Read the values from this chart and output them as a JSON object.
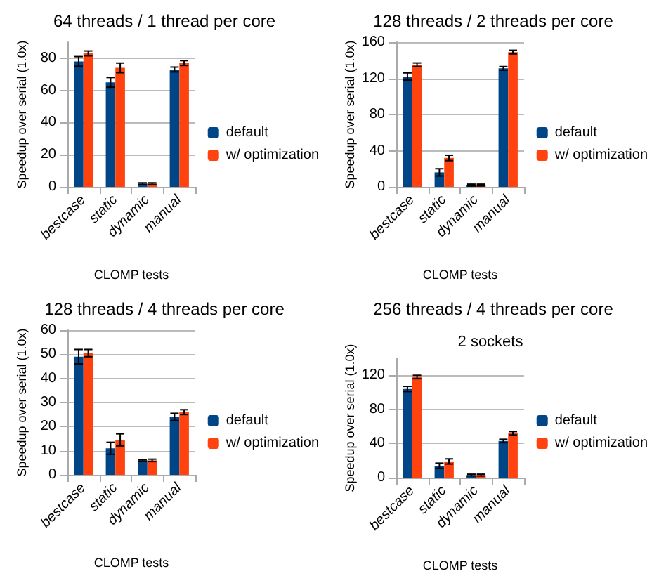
{
  "chart_data": [
    {
      "type": "bar",
      "title": "64 threads / 1 thread per core",
      "xlabel": "CLOMP tests",
      "ylabel": "Speedup over serial (1.0x)",
      "categories": [
        "bestcase",
        "static",
        "dynamic",
        "manual"
      ],
      "series": [
        {
          "name": "default",
          "color": "#004586",
          "values": [
            78,
            65,
            2,
            73
          ],
          "errors": [
            3,
            3,
            0.5,
            1.5
          ]
        },
        {
          "name": "w/ optimization",
          "color": "#ff420e",
          "values": [
            83,
            74,
            2,
            77
          ],
          "errors": [
            1.5,
            3,
            0.5,
            1.5
          ]
        }
      ],
      "ylim": [
        0,
        90
      ],
      "yticks": [
        0,
        20,
        40,
        60,
        80
      ],
      "grid": "y",
      "legend": "right"
    },
    {
      "type": "bar",
      "title": "128 threads / 2 threads per core",
      "xlabel": "CLOMP tests",
      "ylabel": "Speedup over serial (1.0x)",
      "categories": [
        "bestcase",
        "static",
        "dynamic",
        "manual"
      ],
      "series": [
        {
          "name": "default",
          "color": "#004586",
          "values": [
            122,
            16,
            2,
            131
          ],
          "errors": [
            4,
            4,
            1,
            2
          ]
        },
        {
          "name": "w/ optimization",
          "color": "#ff420e",
          "values": [
            135,
            32,
            2,
            149
          ],
          "errors": [
            2,
            3,
            1,
            2
          ]
        }
      ],
      "ylim": [
        0,
        160
      ],
      "yticks": [
        0,
        40,
        80,
        120,
        160
      ],
      "grid": "y",
      "legend": "right"
    },
    {
      "type": "bar",
      "title": "128 threads / 4 threads per core",
      "xlabel": "CLOMP tests",
      "ylabel": "Speedup over serial (1.0x)",
      "categories": [
        "bestcase",
        "static",
        "dynamic",
        "manual"
      ],
      "series": [
        {
          "name": "default",
          "color": "#004586",
          "values": [
            49,
            11,
            6,
            24
          ],
          "errors": [
            3,
            2.5,
            0.3,
            1.5
          ]
        },
        {
          "name": "w/ optimization",
          "color": "#ff420e",
          "values": [
            50.5,
            14.5,
            6,
            26
          ],
          "errors": [
            1.5,
            2.5,
            0.5,
            1
          ]
        }
      ],
      "ylim": [
        0,
        60
      ],
      "yticks": [
        0,
        10,
        20,
        30,
        40,
        50,
        60
      ],
      "grid": "y",
      "legend": "right"
    },
    {
      "type": "bar",
      "title": "256 threads / 4 threads per core",
      "subtitle": "2 sockets",
      "xlabel": "CLOMP tests",
      "ylabel": "Speedup over serial (1.0x)",
      "categories": [
        "bestcase",
        "static",
        "dynamic",
        "manual"
      ],
      "series": [
        {
          "name": "default",
          "color": "#004586",
          "values": [
            104,
            14,
            3,
            43
          ],
          "errors": [
            3,
            3,
            1,
            2
          ]
        },
        {
          "name": "w/ optimization",
          "color": "#ff420e",
          "values": [
            118,
            19,
            3,
            52
          ],
          "errors": [
            2,
            3,
            1,
            2
          ]
        }
      ],
      "ylim": [
        0,
        140
      ],
      "yticks": [
        0,
        40,
        80,
        120
      ],
      "grid": "y",
      "legend": "right"
    }
  ]
}
